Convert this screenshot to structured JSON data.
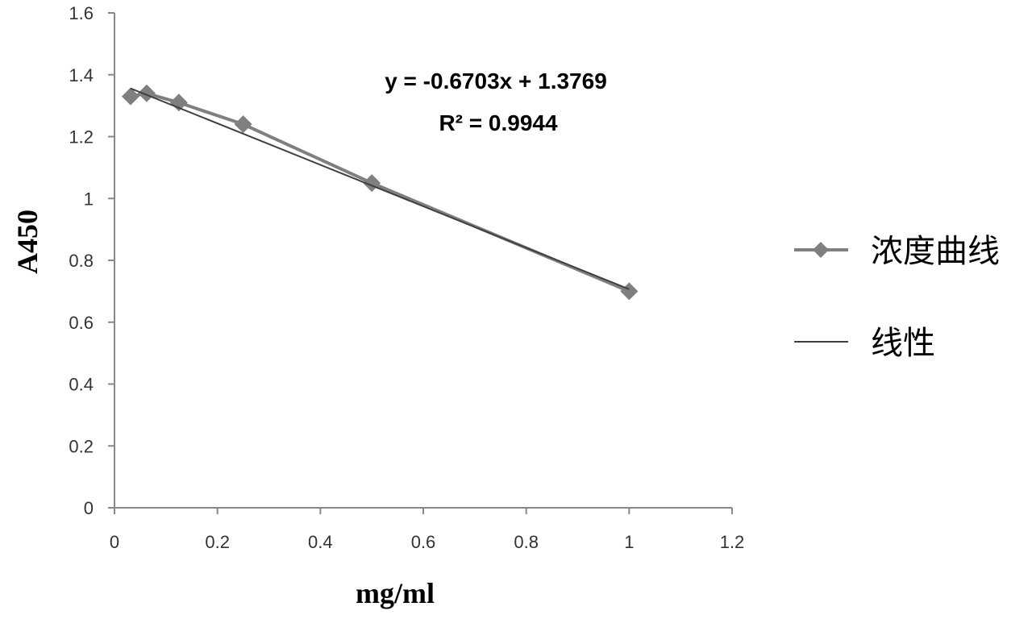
{
  "chart_data": {
    "type": "scatter",
    "xlabel": "mg/ml",
    "ylabel": "A450",
    "xlim": [
      0,
      1.2
    ],
    "ylim": [
      0,
      1.6
    ],
    "x_ticks": [
      "0",
      "0.2",
      "0.4",
      "0.6",
      "0.8",
      "1",
      "1.2"
    ],
    "y_ticks": [
      "0",
      "0.2",
      "0.4",
      "0.6",
      "0.8",
      "1",
      "1.2",
      "1.4",
      "1.6"
    ],
    "grid": false,
    "legend_position": "right",
    "series": [
      {
        "name": "浓度曲线",
        "marker": "diamond",
        "line": true,
        "color": "#7f7f7f",
        "x": [
          0.03125,
          0.0625,
          0.125,
          0.25,
          0.5,
          1
        ],
        "y": [
          1.33,
          1.34,
          1.31,
          1.24,
          1.05,
          0.7
        ]
      }
    ],
    "trendline": {
      "name": "线性",
      "color": "#404040",
      "slope": -0.6703,
      "intercept": 1.3769,
      "x_range": [
        0.03125,
        1
      ],
      "equation": "y = -0.6703x + 1.3769",
      "r_squared": "R² = 0.9944"
    }
  }
}
